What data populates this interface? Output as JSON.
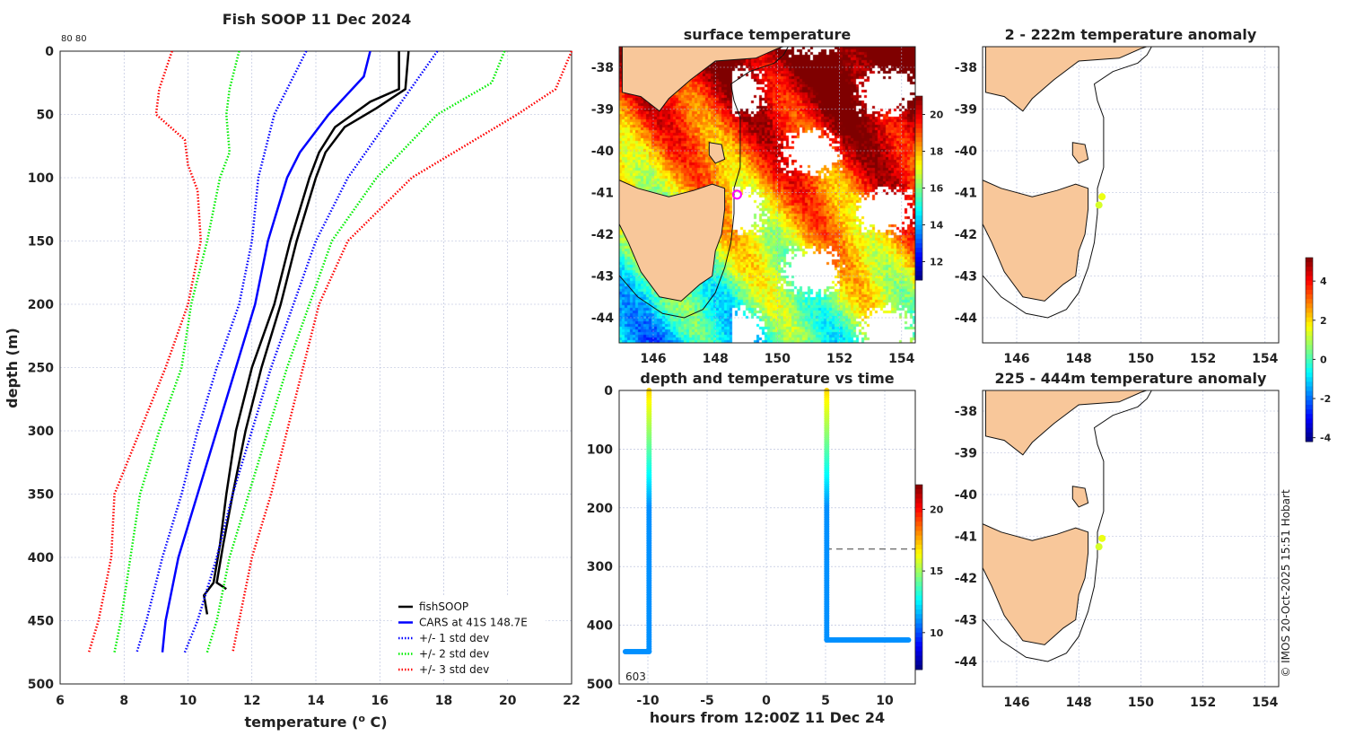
{
  "chart_data": [
    {
      "type": "line",
      "title": "Fish SOOP 11 Dec 2024",
      "corner_label": "80 80",
      "xlabel": "temperature (o C)",
      "ylabel": "depth (m)",
      "xlim": [
        6,
        22
      ],
      "ylim": [
        500,
        0
      ],
      "xticks": [
        6,
        8,
        10,
        12,
        14,
        16,
        18,
        20,
        22
      ],
      "yticks": [
        0,
        50,
        100,
        150,
        200,
        250,
        300,
        350,
        400,
        450,
        500
      ],
      "legend": {
        "placement": "bottom-right",
        "entries": [
          "fishSOOP",
          "CARS at 41S 148.7E",
          "+/- 1 std dev",
          "+/- 2 std dev",
          "+/- 3 std dev"
        ]
      },
      "series": [
        {
          "name": "fishSOOP",
          "color": "#000000",
          "style": "solid",
          "points": [
            [
              16.6,
              0
            ],
            [
              16.6,
              30
            ],
            [
              15.7,
              40
            ],
            [
              14.6,
              60
            ],
            [
              14.1,
              80
            ],
            [
              13.8,
              100
            ],
            [
              13.2,
              150
            ],
            [
              12.7,
              200
            ],
            [
              12.0,
              250
            ],
            [
              11.5,
              300
            ],
            [
              11.2,
              350
            ],
            [
              11.0,
              390
            ],
            [
              10.8,
              420
            ],
            [
              10.5,
              430
            ],
            [
              10.6,
              445
            ]
          ]
        },
        {
          "name": "fishSOOP",
          "color": "#000000",
          "style": "solid",
          "points": [
            [
              16.9,
              0
            ],
            [
              16.8,
              30
            ],
            [
              15.9,
              45
            ],
            [
              14.9,
              60
            ],
            [
              14.3,
              80
            ],
            [
              14.0,
              100
            ],
            [
              13.4,
              150
            ],
            [
              12.9,
              200
            ],
            [
              12.3,
              250
            ],
            [
              11.8,
              300
            ],
            [
              11.4,
              350
            ],
            [
              11.1,
              390
            ],
            [
              10.9,
              420
            ],
            [
              11.2,
              425
            ]
          ]
        },
        {
          "name": "CARS at 41S 148.7E",
          "color": "#0000ff",
          "style": "solid",
          "points": [
            [
              15.7,
              0
            ],
            [
              15.5,
              20
            ],
            [
              14.4,
              50
            ],
            [
              13.5,
              80
            ],
            [
              13.1,
              100
            ],
            [
              12.5,
              150
            ],
            [
              12.1,
              200
            ],
            [
              11.5,
              250
            ],
            [
              10.9,
              300
            ],
            [
              10.3,
              350
            ],
            [
              9.7,
              400
            ],
            [
              9.3,
              450
            ],
            [
              9.2,
              475
            ]
          ]
        },
        {
          "name": "+/- 1 std dev",
          "color": "#0000ff",
          "style": "dotted",
          "points": [
            [
              17.8,
              0
            ],
            [
              16.4,
              50
            ],
            [
              15.0,
              100
            ],
            [
              14.0,
              150
            ],
            [
              13.3,
              200
            ],
            [
              12.6,
              250
            ],
            [
              12.0,
              300
            ],
            [
              11.4,
              350
            ],
            [
              10.9,
              400
            ],
            [
              10.3,
              450
            ],
            [
              9.9,
              475
            ]
          ]
        },
        {
          "name": "+/- 1 std dev",
          "color": "#0000ff",
          "style": "dotted",
          "points": [
            [
              13.7,
              0
            ],
            [
              12.7,
              50
            ],
            [
              12.2,
              100
            ],
            [
              12.0,
              150
            ],
            [
              11.6,
              200
            ],
            [
              10.9,
              250
            ],
            [
              10.3,
              300
            ],
            [
              9.8,
              350
            ],
            [
              9.2,
              400
            ],
            [
              8.7,
              450
            ],
            [
              8.4,
              475
            ]
          ]
        },
        {
          "name": "+/- 2 std dev",
          "color": "#00ee00",
          "style": "dotted",
          "points": [
            [
              19.9,
              0
            ],
            [
              19.5,
              25
            ],
            [
              17.8,
              50
            ],
            [
              15.9,
              100
            ],
            [
              14.5,
              150
            ],
            [
              13.8,
              200
            ],
            [
              13.1,
              250
            ],
            [
              12.5,
              300
            ],
            [
              11.9,
              350
            ],
            [
              11.3,
              400
            ],
            [
              10.9,
              450
            ],
            [
              10.6,
              475
            ]
          ]
        },
        {
          "name": "+/- 2 std dev",
          "color": "#00ee00",
          "style": "dotted",
          "points": [
            [
              11.6,
              0
            ],
            [
              11.3,
              30
            ],
            [
              11.2,
              50
            ],
            [
              11.3,
              80
            ],
            [
              11.0,
              100
            ],
            [
              10.6,
              150
            ],
            [
              10.1,
              200
            ],
            [
              9.8,
              250
            ],
            [
              9.1,
              300
            ],
            [
              8.5,
              350
            ],
            [
              8.2,
              400
            ],
            [
              7.9,
              450
            ],
            [
              7.7,
              475
            ]
          ]
        },
        {
          "name": "+/- 3 std dev",
          "color": "#ff0000",
          "style": "dotted",
          "points": [
            [
              22.0,
              0
            ],
            [
              21.5,
              30
            ],
            [
              20.3,
              50
            ],
            [
              17.0,
              100
            ],
            [
              15.0,
              150
            ],
            [
              14.1,
              200
            ],
            [
              13.6,
              250
            ],
            [
              13.1,
              300
            ],
            [
              12.6,
              350
            ],
            [
              12.0,
              400
            ],
            [
              11.6,
              450
            ],
            [
              11.4,
              475
            ]
          ]
        },
        {
          "name": "+/- 3 std dev",
          "color": "#ff0000",
          "style": "dotted",
          "points": [
            [
              9.5,
              0
            ],
            [
              9.1,
              30
            ],
            [
              9.0,
              50
            ],
            [
              9.9,
              70
            ],
            [
              10.0,
              90
            ],
            [
              10.3,
              110
            ],
            [
              10.4,
              150
            ],
            [
              10.0,
              200
            ],
            [
              9.3,
              250
            ],
            [
              8.5,
              300
            ],
            [
              7.7,
              350
            ],
            [
              7.6,
              400
            ],
            [
              7.2,
              450
            ],
            [
              6.9,
              475
            ]
          ]
        }
      ]
    },
    {
      "type": "heatmap",
      "title": "surface temperature",
      "xticks": [
        146,
        148,
        150,
        152,
        154
      ],
      "yticks": [
        -38,
        -39,
        -40,
        -41,
        -42,
        -43,
        -44
      ],
      "colorbar": {
        "ticks": [
          12,
          14,
          16,
          18,
          20
        ],
        "range": [
          11,
          21
        ]
      },
      "marker": {
        "lon": 148.7,
        "lat": -41.05,
        "color": "#ff00ff"
      }
    },
    {
      "type": "scatter",
      "title": "depth and temperature vs time",
      "xlabel": "hours from 12:00Z 11 Dec 24",
      "xlim": [
        -12.5,
        12.5
      ],
      "ylim": [
        500,
        0
      ],
      "xticks": [
        -10,
        -5,
        0,
        5,
        10
      ],
      "yticks": [
        0,
        100,
        200,
        300,
        400,
        500
      ],
      "annotation": "603",
      "colorbar": {
        "ticks": [
          10,
          15,
          20
        ],
        "range": [
          7,
          22
        ]
      },
      "casts": [
        {
          "t": -9.9,
          "max_depth": 445,
          "bottom_t_start": -11.9,
          "surface_temp": 17,
          "bottom_temp": 11
        },
        {
          "t": 5.1,
          "max_depth": 425,
          "bottom_t_end": 12,
          "surface_temp": 17,
          "bottom_temp": 11
        }
      ],
      "dashed_depth": 270
    },
    {
      "type": "scatter",
      "title": "2 - 222m temperature anomaly",
      "xticks": [
        146,
        148,
        150,
        152,
        154
      ],
      "yticks": [
        -38,
        -39,
        -40,
        -41,
        -42,
        -43,
        -44
      ],
      "points": [
        {
          "lon": 148.75,
          "lat": -41.1,
          "anomaly": 1.5
        },
        {
          "lon": 148.65,
          "lat": -41.3,
          "anomaly": 1.3
        }
      ]
    },
    {
      "type": "scatter",
      "title": "225 - 444m temperature anomaly",
      "xticks": [
        146,
        148,
        150,
        152,
        154
      ],
      "yticks": [
        -38,
        -39,
        -40,
        -41,
        -42,
        -43,
        -44
      ],
      "points": [
        {
          "lon": 148.75,
          "lat": -41.05,
          "anomaly": 1.5
        },
        {
          "lon": 148.65,
          "lat": -41.25,
          "anomaly": 1.3
        }
      ],
      "colorbar": {
        "ticks": [
          4,
          2,
          0,
          -2,
          -4
        ],
        "range": [
          -4.2,
          5.2
        ]
      }
    }
  ],
  "credit": "© IMOS 20-Oct-2025 15:51 Hobart"
}
